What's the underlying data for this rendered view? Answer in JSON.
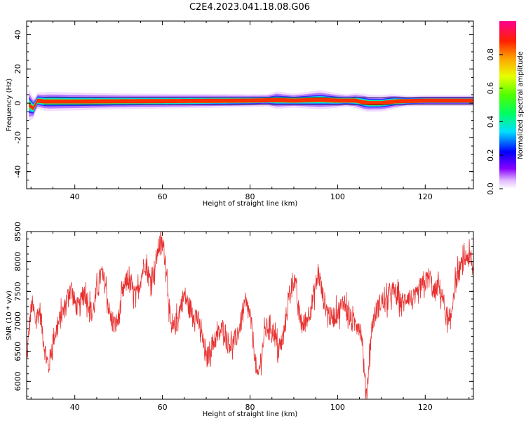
{
  "title": "C2E4.2023.041.18.08.G06",
  "chart_data": [
    {
      "type": "heatmap",
      "xlabel": "Height of straight line (km)",
      "ylabel": "Frequency (Hz)",
      "xlim": [
        29,
        131
      ],
      "ylim": [
        -50,
        48
      ],
      "xticks": [
        40,
        60,
        80,
        100,
        120
      ],
      "yticks": [
        40,
        20,
        0,
        -20,
        -40
      ],
      "ytick_labels": [
        "40",
        "20",
        "0",
        "-20",
        "-40"
      ],
      "colorbar": {
        "label": "Normalized spectral amplitude",
        "range": [
          0,
          1
        ],
        "ticks": [
          0.0,
          0.2,
          0.4,
          0.6,
          0.8
        ],
        "tick_labels": [
          "0.0",
          "0.2",
          "0.4",
          "0.6",
          "0.8"
        ]
      },
      "band": {
        "center_hz": [
          [
            29.5,
            -1
          ],
          [
            30.5,
            -3
          ],
          [
            31.5,
            1.5
          ],
          [
            33,
            1
          ],
          [
            40,
            1
          ],
          [
            60,
            1.2
          ],
          [
            80,
            1.5
          ],
          [
            86,
            1.8
          ],
          [
            90,
            1.5
          ],
          [
            96,
            2
          ],
          [
            100,
            1.5
          ],
          [
            104,
            1.5
          ],
          [
            107,
            0
          ],
          [
            110,
            0
          ],
          [
            113,
            1
          ],
          [
            120,
            1.5
          ],
          [
            131,
            1.5
          ]
        ],
        "core_halfwidth_hz": 1.2,
        "envelope_halfwidth_hz": [
          [
            29.5,
            9
          ],
          [
            31,
            4
          ],
          [
            34,
            5
          ],
          [
            50,
            4
          ],
          [
            70,
            3.5
          ],
          [
            84,
            3
          ],
          [
            86,
            4.5
          ],
          [
            90,
            3.5
          ],
          [
            96,
            5
          ],
          [
            102,
            3
          ],
          [
            106,
            4.5
          ],
          [
            112,
            4
          ],
          [
            116,
            2.5
          ],
          [
            131,
            2.5
          ]
        ]
      }
    },
    {
      "type": "line",
      "xlabel": "Height of straight line (km)",
      "ylabel": "SNR (10 * v/v)",
      "xlim": [
        29,
        131
      ],
      "ylim": [
        5700,
        8500
      ],
      "xticks": [
        40,
        60,
        80,
        100,
        120
      ],
      "yticks": [
        8500,
        8000,
        7500,
        7000,
        6500,
        6000
      ],
      "series": [
        {
          "color": "#e83030",
          "points": [
            [
              29,
              6300
            ],
            [
              29.6,
              6900
            ],
            [
              30.2,
              7300
            ],
            [
              31,
              7000
            ],
            [
              32,
              7200
            ],
            [
              33,
              6600
            ],
            [
              34,
              6200
            ],
            [
              35,
              6700
            ],
            [
              36,
              6900
            ],
            [
              37,
              7100
            ],
            [
              38,
              7300
            ],
            [
              39,
              7600
            ],
            [
              40,
              7300
            ],
            [
              41,
              7200
            ],
            [
              42,
              7500
            ],
            [
              43,
              7350
            ],
            [
              44,
              7100
            ],
            [
              45,
              7500
            ],
            [
              46,
              7800
            ],
            [
              47,
              7600
            ],
            [
              48,
              7100
            ],
            [
              49,
              6900
            ],
            [
              50,
              7050
            ],
            [
              51,
              7500
            ],
            [
              52,
              7700
            ],
            [
              53,
              7550
            ],
            [
              54,
              7400
            ],
            [
              55,
              7700
            ],
            [
              56,
              8000
            ],
            [
              57,
              7700
            ],
            [
              58,
              7800
            ],
            [
              59,
              8200
            ],
            [
              59.6,
              8350
            ],
            [
              60.3,
              8200
            ],
            [
              61,
              7850
            ],
            [
              61.5,
              7300
            ],
            [
              62,
              6800
            ],
            [
              63,
              6950
            ],
            [
              64,
              7200
            ],
            [
              65,
              7450
            ],
            [
              66,
              7250
            ],
            [
              67,
              7150
            ],
            [
              68,
              7050
            ],
            [
              69,
              6750
            ],
            [
              70,
              6350
            ],
            [
              71,
              6550
            ],
            [
              72,
              6700
            ],
            [
              73,
              6800
            ],
            [
              74,
              6900
            ],
            [
              75,
              6650
            ],
            [
              76,
              6600
            ],
            [
              77,
              6750
            ],
            [
              78,
              7000
            ],
            [
              79,
              7300
            ],
            [
              80,
              7100
            ],
            [
              81,
              6500
            ],
            [
              81.7,
              6000
            ],
            [
              82.5,
              6400
            ],
            [
              83.5,
              6850
            ],
            [
              84.5,
              6950
            ],
            [
              85.5,
              6800
            ],
            [
              86.5,
              6500
            ],
            [
              87.5,
              6700
            ],
            [
              88.5,
              7200
            ],
            [
              89.5,
              7650
            ],
            [
              90.2,
              7700
            ],
            [
              91,
              7200
            ],
            [
              92,
              6900
            ],
            [
              93,
              7050
            ],
            [
              94,
              7250
            ],
            [
              95,
              7600
            ],
            [
              95.7,
              7800
            ],
            [
              96.5,
              7450
            ],
            [
              97.5,
              7200
            ],
            [
              98.5,
              7050
            ],
            [
              99.5,
              7100
            ],
            [
              100.5,
              7200
            ],
            [
              101.5,
              7350
            ],
            [
              102.5,
              7100
            ],
            [
              103.5,
              6950
            ],
            [
              104.5,
              7000
            ],
            [
              105.5,
              6800
            ],
            [
              106.2,
              6000
            ],
            [
              106.7,
              5800
            ],
            [
              107.3,
              6500
            ],
            [
              108,
              7000
            ],
            [
              109,
              7200
            ],
            [
              110,
              7350
            ],
            [
              111,
              7300
            ],
            [
              112,
              7450
            ],
            [
              113,
              7500
            ],
            [
              114,
              7350
            ],
            [
              115,
              7300
            ],
            [
              116,
              7450
            ],
            [
              117,
              7350
            ],
            [
              118,
              7400
            ],
            [
              119,
              7550
            ],
            [
              120,
              7650
            ],
            [
              121,
              7750
            ],
            [
              122,
              7450
            ],
            [
              123,
              7600
            ],
            [
              124,
              7400
            ],
            [
              125,
              7000
            ],
            [
              125.7,
              6900
            ],
            [
              126.5,
              7500
            ],
            [
              127.5,
              7800
            ],
            [
              128.5,
              7950
            ],
            [
              129.5,
              8100
            ],
            [
              130.5,
              8000
            ],
            [
              131,
              7800
            ]
          ]
        }
      ]
    }
  ]
}
